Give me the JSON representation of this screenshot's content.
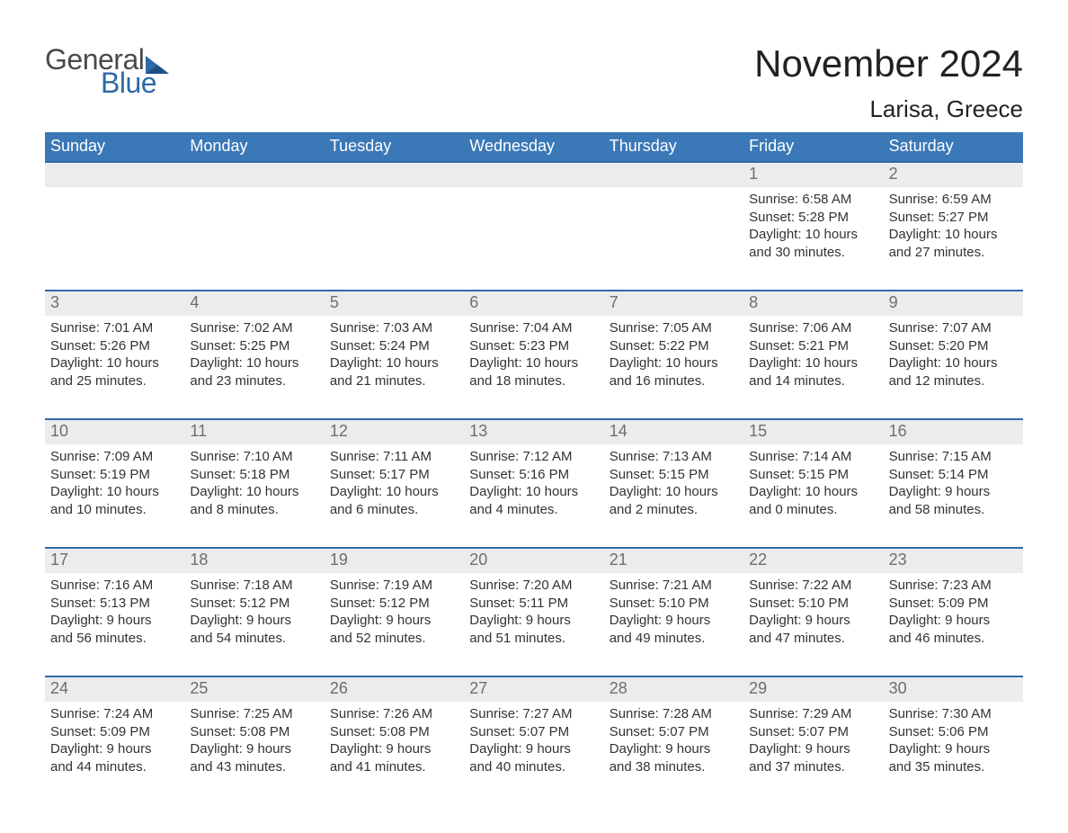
{
  "logo": {
    "word1": "General",
    "word2": "Blue"
  },
  "title": {
    "month": "November 2024",
    "location": "Larisa, Greece"
  },
  "colors": {
    "header_blue": "#3b78b7",
    "accent_blue": "#2f6aa8",
    "row_header_bg": "#ececec",
    "row_header_text": "#6e6e6e",
    "background": "#ffffff",
    "text": "#333333",
    "logo_text": "#4a4a4a",
    "logo_blue": "#2f6aa8"
  },
  "weekdays": [
    "Sunday",
    "Monday",
    "Tuesday",
    "Wednesday",
    "Thursday",
    "Friday",
    "Saturday"
  ],
  "weeks": [
    [
      null,
      null,
      null,
      null,
      null,
      {
        "n": "1",
        "sunrise": "Sunrise: 6:58 AM",
        "sunset": "Sunset: 5:28 PM",
        "d1": "Daylight: 10 hours",
        "d2": "and 30 minutes."
      },
      {
        "n": "2",
        "sunrise": "Sunrise: 6:59 AM",
        "sunset": "Sunset: 5:27 PM",
        "d1": "Daylight: 10 hours",
        "d2": "and 27 minutes."
      }
    ],
    [
      {
        "n": "3",
        "sunrise": "Sunrise: 7:01 AM",
        "sunset": "Sunset: 5:26 PM",
        "d1": "Daylight: 10 hours",
        "d2": "and 25 minutes."
      },
      {
        "n": "4",
        "sunrise": "Sunrise: 7:02 AM",
        "sunset": "Sunset: 5:25 PM",
        "d1": "Daylight: 10 hours",
        "d2": "and 23 minutes."
      },
      {
        "n": "5",
        "sunrise": "Sunrise: 7:03 AM",
        "sunset": "Sunset: 5:24 PM",
        "d1": "Daylight: 10 hours",
        "d2": "and 21 minutes."
      },
      {
        "n": "6",
        "sunrise": "Sunrise: 7:04 AM",
        "sunset": "Sunset: 5:23 PM",
        "d1": "Daylight: 10 hours",
        "d2": "and 18 minutes."
      },
      {
        "n": "7",
        "sunrise": "Sunrise: 7:05 AM",
        "sunset": "Sunset: 5:22 PM",
        "d1": "Daylight: 10 hours",
        "d2": "and 16 minutes."
      },
      {
        "n": "8",
        "sunrise": "Sunrise: 7:06 AM",
        "sunset": "Sunset: 5:21 PM",
        "d1": "Daylight: 10 hours",
        "d2": "and 14 minutes."
      },
      {
        "n": "9",
        "sunrise": "Sunrise: 7:07 AM",
        "sunset": "Sunset: 5:20 PM",
        "d1": "Daylight: 10 hours",
        "d2": "and 12 minutes."
      }
    ],
    [
      {
        "n": "10",
        "sunrise": "Sunrise: 7:09 AM",
        "sunset": "Sunset: 5:19 PM",
        "d1": "Daylight: 10 hours",
        "d2": "and 10 minutes."
      },
      {
        "n": "11",
        "sunrise": "Sunrise: 7:10 AM",
        "sunset": "Sunset: 5:18 PM",
        "d1": "Daylight: 10 hours",
        "d2": "and 8 minutes."
      },
      {
        "n": "12",
        "sunrise": "Sunrise: 7:11 AM",
        "sunset": "Sunset: 5:17 PM",
        "d1": "Daylight: 10 hours",
        "d2": "and 6 minutes."
      },
      {
        "n": "13",
        "sunrise": "Sunrise: 7:12 AM",
        "sunset": "Sunset: 5:16 PM",
        "d1": "Daylight: 10 hours",
        "d2": "and 4 minutes."
      },
      {
        "n": "14",
        "sunrise": "Sunrise: 7:13 AM",
        "sunset": "Sunset: 5:15 PM",
        "d1": "Daylight: 10 hours",
        "d2": "and 2 minutes."
      },
      {
        "n": "15",
        "sunrise": "Sunrise: 7:14 AM",
        "sunset": "Sunset: 5:15 PM",
        "d1": "Daylight: 10 hours",
        "d2": "and 0 minutes."
      },
      {
        "n": "16",
        "sunrise": "Sunrise: 7:15 AM",
        "sunset": "Sunset: 5:14 PM",
        "d1": "Daylight: 9 hours",
        "d2": "and 58 minutes."
      }
    ],
    [
      {
        "n": "17",
        "sunrise": "Sunrise: 7:16 AM",
        "sunset": "Sunset: 5:13 PM",
        "d1": "Daylight: 9 hours",
        "d2": "and 56 minutes."
      },
      {
        "n": "18",
        "sunrise": "Sunrise: 7:18 AM",
        "sunset": "Sunset: 5:12 PM",
        "d1": "Daylight: 9 hours",
        "d2": "and 54 minutes."
      },
      {
        "n": "19",
        "sunrise": "Sunrise: 7:19 AM",
        "sunset": "Sunset: 5:12 PM",
        "d1": "Daylight: 9 hours",
        "d2": "and 52 minutes."
      },
      {
        "n": "20",
        "sunrise": "Sunrise: 7:20 AM",
        "sunset": "Sunset: 5:11 PM",
        "d1": "Daylight: 9 hours",
        "d2": "and 51 minutes."
      },
      {
        "n": "21",
        "sunrise": "Sunrise: 7:21 AM",
        "sunset": "Sunset: 5:10 PM",
        "d1": "Daylight: 9 hours",
        "d2": "and 49 minutes."
      },
      {
        "n": "22",
        "sunrise": "Sunrise: 7:22 AM",
        "sunset": "Sunset: 5:10 PM",
        "d1": "Daylight: 9 hours",
        "d2": "and 47 minutes."
      },
      {
        "n": "23",
        "sunrise": "Sunrise: 7:23 AM",
        "sunset": "Sunset: 5:09 PM",
        "d1": "Daylight: 9 hours",
        "d2": "and 46 minutes."
      }
    ],
    [
      {
        "n": "24",
        "sunrise": "Sunrise: 7:24 AM",
        "sunset": "Sunset: 5:09 PM",
        "d1": "Daylight: 9 hours",
        "d2": "and 44 minutes."
      },
      {
        "n": "25",
        "sunrise": "Sunrise: 7:25 AM",
        "sunset": "Sunset: 5:08 PM",
        "d1": "Daylight: 9 hours",
        "d2": "and 43 minutes."
      },
      {
        "n": "26",
        "sunrise": "Sunrise: 7:26 AM",
        "sunset": "Sunset: 5:08 PM",
        "d1": "Daylight: 9 hours",
        "d2": "and 41 minutes."
      },
      {
        "n": "27",
        "sunrise": "Sunrise: 7:27 AM",
        "sunset": "Sunset: 5:07 PM",
        "d1": "Daylight: 9 hours",
        "d2": "and 40 minutes."
      },
      {
        "n": "28",
        "sunrise": "Sunrise: 7:28 AM",
        "sunset": "Sunset: 5:07 PM",
        "d1": "Daylight: 9 hours",
        "d2": "and 38 minutes."
      },
      {
        "n": "29",
        "sunrise": "Sunrise: 7:29 AM",
        "sunset": "Sunset: 5:07 PM",
        "d1": "Daylight: 9 hours",
        "d2": "and 37 minutes."
      },
      {
        "n": "30",
        "sunrise": "Sunrise: 7:30 AM",
        "sunset": "Sunset: 5:06 PM",
        "d1": "Daylight: 9 hours",
        "d2": "and 35 minutes."
      }
    ]
  ]
}
